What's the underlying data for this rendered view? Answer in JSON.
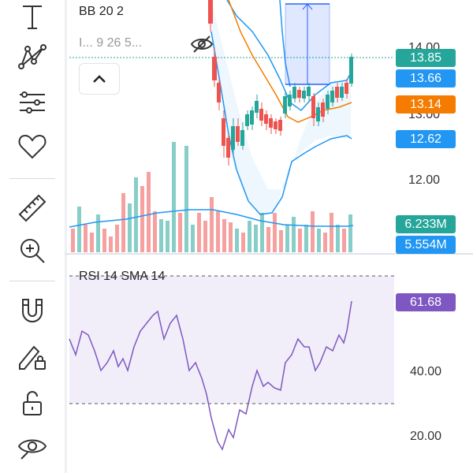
{
  "toolbar": {
    "items": [
      {
        "name": "text-tool",
        "icon": "text-icon"
      },
      {
        "name": "pattern-tool",
        "icon": "pattern-icon"
      },
      {
        "name": "fib-tool",
        "icon": "fib-retracement-icon"
      },
      {
        "name": "favorites-tool",
        "icon": "heart-icon"
      },
      {
        "name": "ruler-tool",
        "icon": "ruler-icon"
      },
      {
        "name": "zoom-tool",
        "icon": "zoom-in-icon"
      },
      {
        "name": "magnet-tool",
        "icon": "magnet-icon"
      },
      {
        "name": "lock-drawing-tool",
        "icon": "pencil-lock-icon"
      },
      {
        "name": "unlock-tool",
        "icon": "unlock-icon"
      },
      {
        "name": "hide-tool",
        "icon": "eye-icon"
      }
    ]
  },
  "legend": {
    "bb": "BB 20 2",
    "bb_values": "I... 9 26 5..."
  },
  "price_tags": {
    "last": "13.85",
    "upper": "13.66",
    "basis": "13.14",
    "lower": "12.62",
    "volume": "6.233M",
    "volume_ma": "5.554M",
    "rsi": "61.68"
  },
  "price_axis": {
    "top": "14.00",
    "mid": "13.00",
    "low": "12.00"
  },
  "rsi": {
    "label": "RSI 14 SMA 14",
    "axis_40": "40.00",
    "axis_20": "20.00"
  },
  "colors": {
    "up": "#26a69a",
    "down": "#ef5350",
    "bb_band": "#2196f3",
    "bb_basis": "#ff6d00",
    "rsi_line": "#7e57c2",
    "last_price": "#26a69a",
    "upper_tag": "#2196f3",
    "basis_tag": "#f57c00",
    "lower_tag": "#2196f3",
    "volume_tag": "#26a69a",
    "volume_ma_tag": "#2196f3",
    "rsi_tag": "#7e57c2"
  }
}
